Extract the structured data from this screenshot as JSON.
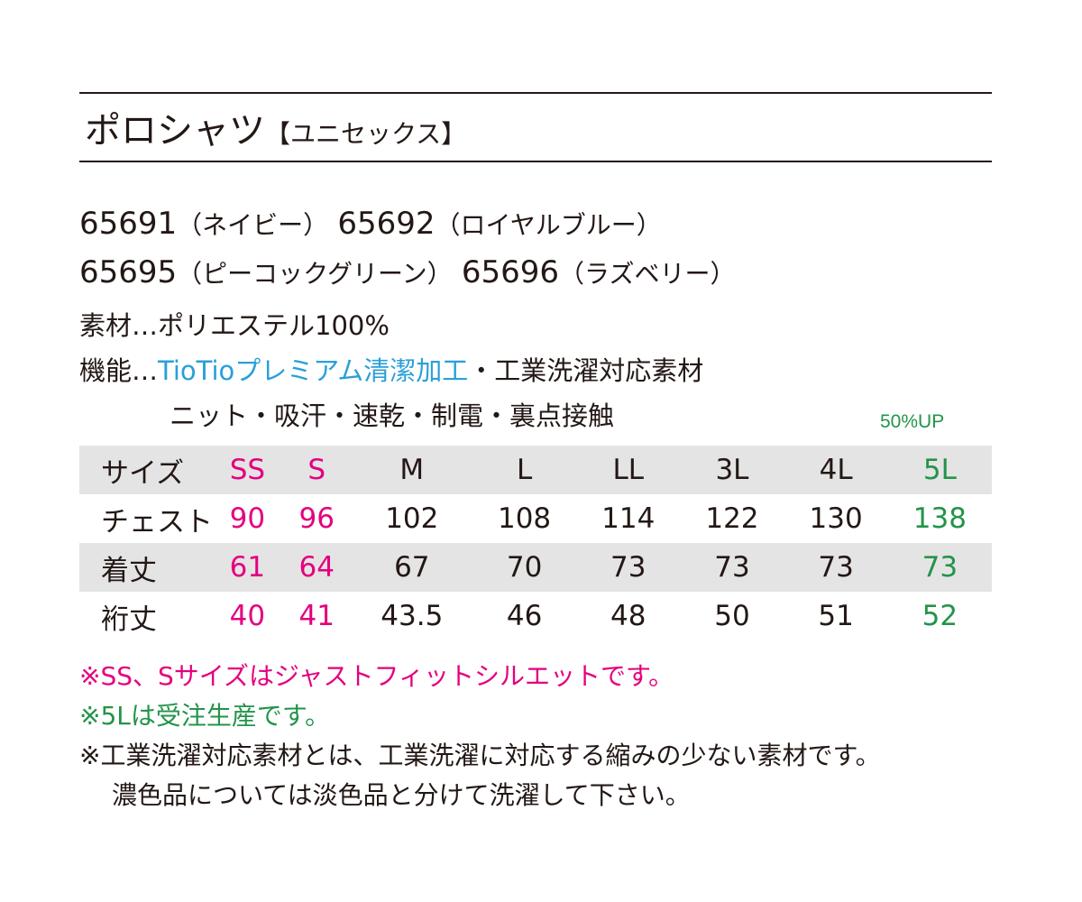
{
  "header": {
    "title": "ポロシャツ",
    "subtitle": "【ユニセックス】"
  },
  "colors": {
    "pink": "#e4007f",
    "green": "#23944a",
    "blue": "#2a9fd8",
    "row_shade": "#e4e4e5"
  },
  "products": [
    {
      "code": "65691",
      "color": "（ネイビー）"
    },
    {
      "code": "65692",
      "color": "（ロイヤルブルー）"
    },
    {
      "code": "65695",
      "color": "（ピーコックグリーン）"
    },
    {
      "code": "65696",
      "color": "（ラズベリー）"
    }
  ],
  "spec": {
    "material_label": "素材…",
    "material_value": "ポリエステル100%",
    "function_label": "機能…",
    "function_highlight": "TioTioプレミアム清潔加工",
    "function_rest": "・工業洗濯対応素材",
    "function_line2": "ニット・吸汗・速乾・制電・裏点接触"
  },
  "size_table": {
    "note_50up": "50%UP",
    "header": [
      "サイズ",
      "SS",
      "S",
      "M",
      "L",
      "LL",
      "3L",
      "4L",
      "5L"
    ],
    "rows": [
      [
        "チェスト",
        "90",
        "96",
        "102",
        "108",
        "114",
        "122",
        "130",
        "138"
      ],
      [
        "着丈",
        "61",
        "64",
        "67",
        "70",
        "73",
        "73",
        "73",
        "73"
      ],
      [
        "裄丈",
        "40",
        "41",
        "43.5",
        "46",
        "48",
        "50",
        "51",
        "52"
      ]
    ]
  },
  "notes": {
    "line1": "※SS、Sサイズはジャストフィットシルエットです。",
    "line2": "※5Lは受注生産です。",
    "line3": "※工業洗濯対応素材とは、工業洗濯に対応する縮みの少ない素材です。",
    "line4": "濃色品については淡色品と分けて洗濯して下さい。"
  }
}
